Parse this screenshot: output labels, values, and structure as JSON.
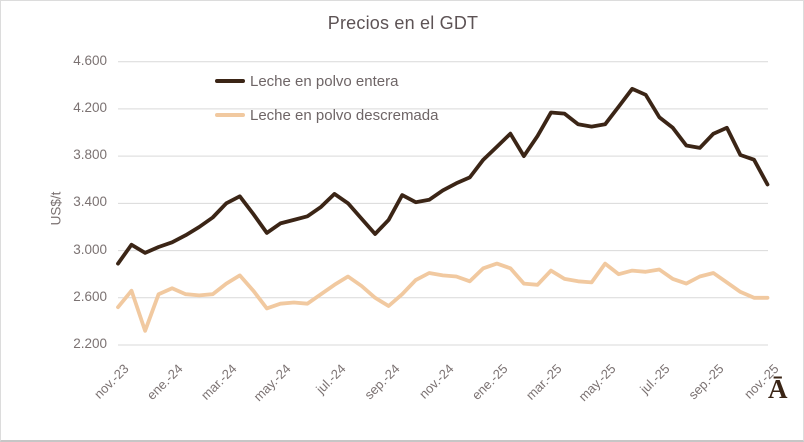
{
  "title": "Precios en el GDT",
  "y_axis": {
    "title": "US$/t",
    "tick_labels": [
      "2.200",
      "2.600",
      "3.000",
      "3.400",
      "3.800",
      "4.200",
      "4.600"
    ],
    "min": 2200,
    "max": 4600,
    "step": 400
  },
  "x_axis": {
    "tick_labels": [
      "nov.-23",
      "ene.-24",
      "mar.-24",
      "may.-24",
      "jul.-24",
      "sep.-24",
      "nov.-24",
      "ene.-25",
      "mar.-25",
      "may.-25",
      "jul.-25",
      "sep.-25",
      "nov.-25"
    ],
    "points_per_tick": 4
  },
  "legend": {
    "items": [
      {
        "label": "Leche en polvo entera",
        "color": "#3b2516"
      },
      {
        "label": "Leche en polvo descremada",
        "color": "#f1c9a0"
      }
    ]
  },
  "stray_char": "Ā",
  "colors": {
    "entera_line": "#3b2516",
    "descremada_line": "#f1c9a0",
    "gridline": "#d9d9d9",
    "axis_text": "#7b7272",
    "title_text": "#5d5355",
    "background": "#ffffff"
  },
  "chart_data": {
    "type": "line",
    "title": "Precios en el GDT",
    "ylabel": "US$/t",
    "ylim": [
      2200,
      4600
    ],
    "y_tick_step": 400,
    "grid": "horizontal",
    "legend_position": "inside-top-left",
    "x_tick_labels": [
      "nov.-23",
      "ene.-24",
      "mar.-24",
      "may.-24",
      "jul.-24",
      "sep.-24",
      "nov.-24",
      "ene.-25",
      "mar.-25",
      "may.-25",
      "jul.-25",
      "sep.-25",
      "nov.-25"
    ],
    "points_per_tick": 4,
    "frequency": "twice-monthly auctions, nov-23 through nov-25 (49 points)",
    "series": [
      {
        "name": "Leche en polvo entera",
        "color": "#3b2516",
        "values": [
          2890,
          3050,
          2980,
          3030,
          3070,
          3130,
          3200,
          3280,
          3400,
          3460,
          3310,
          3150,
          3230,
          3260,
          3290,
          3370,
          3480,
          3400,
          3270,
          3140,
          3260,
          3470,
          3410,
          3430,
          3510,
          3570,
          3620,
          3770,
          3880,
          3990,
          3800,
          3970,
          4170,
          4160,
          4070,
          4050,
          4070,
          4220,
          4370,
          4320,
          4130,
          4040,
          3890,
          3870,
          3990,
          4040,
          3810,
          3770,
          3560
        ]
      },
      {
        "name": "Leche en polvo descremada",
        "color": "#f1c9a0",
        "values": [
          2520,
          2660,
          2320,
          2630,
          2680,
          2630,
          2620,
          2630,
          2720,
          2790,
          2660,
          2510,
          2550,
          2560,
          2550,
          2630,
          2710,
          2780,
          2700,
          2600,
          2530,
          2630,
          2750,
          2810,
          2790,
          2780,
          2740,
          2850,
          2890,
          2850,
          2720,
          2710,
          2830,
          2760,
          2740,
          2730,
          2890,
          2800,
          2830,
          2820,
          2840,
          2760,
          2720,
          2780,
          2810,
          2730,
          2650,
          2600,
          2600
        ]
      }
    ]
  }
}
